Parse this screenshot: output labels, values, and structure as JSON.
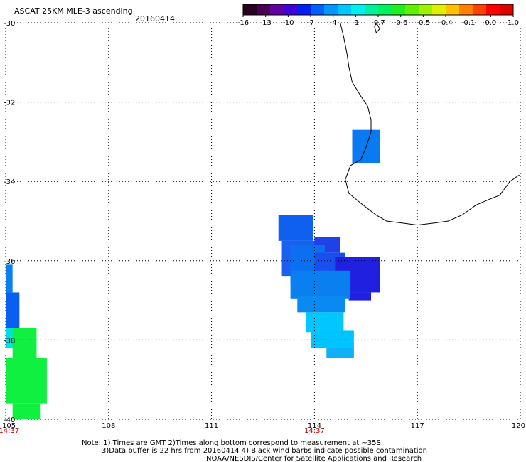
{
  "header": {
    "title": "ASCAT 25KM MLE-3 ascending",
    "date": "20160414"
  },
  "colorbar": {
    "labels": [
      "-16",
      "-13",
      "-10",
      "-7",
      "-4",
      "-1",
      "-0.7",
      "-0.6",
      "-0.5",
      "-0.4",
      "-0.1",
      "0.0",
      "1.0"
    ],
    "colors": [
      "#2a0020",
      "#4a0050",
      "#6000a0",
      "#4000d8",
      "#0020f0",
      "#0060ff",
      "#0098ff",
      "#00c8ff",
      "#00f0f0",
      "#00f0a0",
      "#00f060",
      "#20f020",
      "#60f000",
      "#a0f000",
      "#e0f000",
      "#ffc000",
      "#ff8000",
      "#ff4000",
      "#ff0000",
      "#e00000"
    ]
  },
  "axes": {
    "lon_min": 105,
    "lon_max": 120,
    "lat_min": -40,
    "lat_max": -30,
    "lon_labels": [
      "105",
      "108",
      "111",
      "114",
      "117",
      "120"
    ],
    "lat_labels": [
      "-30",
      "-32",
      "-34",
      "-36",
      "-38",
      "-40"
    ],
    "grid": "dotted"
  },
  "pass_times": [
    {
      "label": "14:37",
      "lon": 105.1
    },
    {
      "label": "14:37",
      "lon": 114.0
    }
  ],
  "swath_cells": [
    {
      "lon": [
        115.1,
        115.9
      ],
      "lat": [
        -32.7,
        -33.55
      ],
      "color": "#0a7af0"
    },
    {
      "lon": [
        112.95,
        113.95
      ],
      "lat": [
        -34.85,
        -35.5
      ],
      "color": "#1060f0"
    },
    {
      "lon": [
        113.05,
        114.1
      ],
      "lat": [
        -35.5,
        -36.4
      ],
      "color": "#1860f0"
    },
    {
      "lon": [
        114.0,
        114.75
      ],
      "lat": [
        -35.4,
        -35.8
      ],
      "color": "#2040e8"
    },
    {
      "lon": [
        113.3,
        114.3
      ],
      "lat": [
        -35.6,
        -36.6
      ],
      "color": "#0a70f0"
    },
    {
      "lon": [
        114.0,
        114.9
      ],
      "lat": [
        -35.8,
        -36.3
      ],
      "color": "#1850f0"
    },
    {
      "lon": [
        114.6,
        115.9
      ],
      "lat": [
        -35.9,
        -36.8
      ],
      "color": "#2020e0"
    },
    {
      "lon": [
        115.0,
        115.65
      ],
      "lat": [
        -36.8,
        -37.0
      ],
      "color": "#2020e0"
    },
    {
      "lon": [
        113.3,
        115.05
      ],
      "lat": [
        -36.25,
        -36.95
      ],
      "color": "#0a80f0"
    },
    {
      "lon": [
        113.5,
        114.9
      ],
      "lat": [
        -36.9,
        -37.3
      ],
      "color": "#0a8af0"
    },
    {
      "lon": [
        113.75,
        114.85
      ],
      "lat": [
        -37.3,
        -37.8
      ],
      "color": "#00c8ff"
    },
    {
      "lon": [
        113.9,
        115.15
      ],
      "lat": [
        -37.75,
        -38.2
      ],
      "color": "#00c4ff"
    },
    {
      "lon": [
        114.35,
        115.15
      ],
      "lat": [
        -38.2,
        -38.45
      ],
      "color": "#10b0f8"
    },
    {
      "lon": [
        105.0,
        105.2
      ],
      "lat": [
        -36.1,
        -36.8
      ],
      "color": "#0a80f0"
    },
    {
      "lon": [
        105.0,
        105.4
      ],
      "lat": [
        -36.8,
        -37.7
      ],
      "color": "#0a5ef0"
    },
    {
      "lon": [
        105.0,
        105.25
      ],
      "lat": [
        -37.7,
        -38.2
      ],
      "color": "#00e0e0"
    },
    {
      "lon": [
        105.2,
        105.9
      ],
      "lat": [
        -37.7,
        -38.45
      ],
      "color": "#10f040"
    },
    {
      "lon": [
        105.0,
        106.2
      ],
      "lat": [
        -38.45,
        -39.6
      ],
      "color": "#10f040"
    },
    {
      "lon": [
        105.2,
        106.0
      ],
      "lat": [
        -39.6,
        -40.0
      ],
      "color": "#10f040"
    }
  ],
  "coastline": [
    [
      114.75,
      -30.0
    ],
    [
      114.85,
      -30.35
    ],
    [
      114.95,
      -30.8
    ],
    [
      115.0,
      -31.1
    ],
    [
      115.1,
      -31.5
    ],
    [
      115.35,
      -31.85
    ],
    [
      115.55,
      -32.1
    ],
    [
      115.65,
      -32.45
    ],
    [
      115.65,
      -32.75
    ],
    [
      115.5,
      -33.15
    ],
    [
      115.35,
      -33.45
    ],
    [
      115.05,
      -33.6
    ],
    [
      114.9,
      -33.95
    ],
    [
      115.0,
      -34.3
    ],
    [
      115.35,
      -34.55
    ],
    [
      115.8,
      -34.85
    ],
    [
      116.1,
      -35.0
    ],
    [
      116.55,
      -35.05
    ],
    [
      117.0,
      -35.1
    ],
    [
      117.5,
      -35.05
    ],
    [
      117.9,
      -35.0
    ],
    [
      118.3,
      -34.85
    ],
    [
      118.7,
      -34.6
    ],
    [
      119.1,
      -34.45
    ],
    [
      119.4,
      -34.35
    ],
    [
      119.7,
      -34.0
    ],
    [
      119.95,
      -33.85
    ],
    [
      120.0,
      -33.85
    ]
  ],
  "inlet": [
    [
      115.8,
      -30.0
    ],
    [
      115.9,
      -30.15
    ],
    [
      115.8,
      -30.25
    ],
    [
      115.75,
      -30.1
    ]
  ],
  "notes": [
    "Note: 1) Times are GMT 2)Times along bottom correspond to measurement at ~35S",
    "3)Data buffer is 22 hrs from 20160414 4) Black wind barbs indicate possible contamination",
    "NOAA/NESDIS/Center for Satellite Applications and Research"
  ]
}
